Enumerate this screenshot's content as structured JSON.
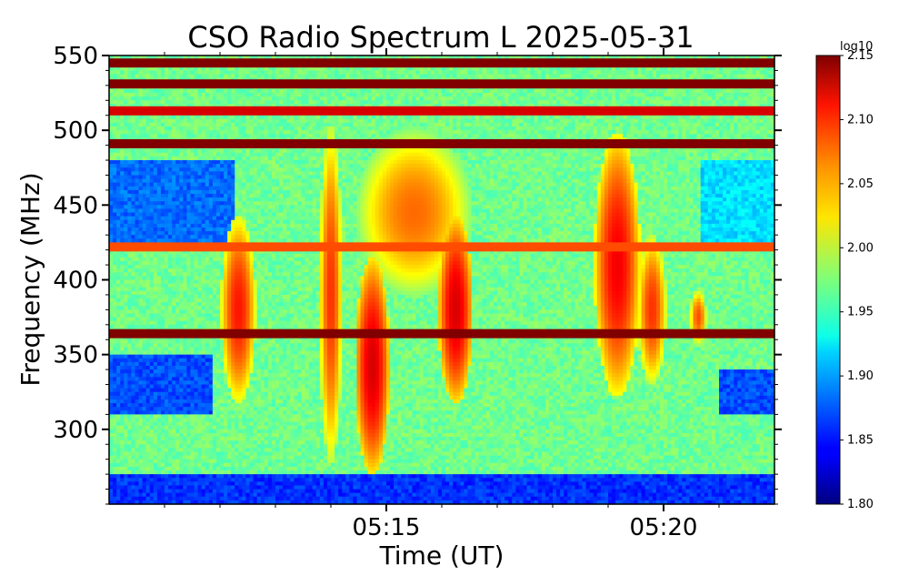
{
  "chart_data": {
    "type": "heatmap",
    "title": "CSO Radio Spectrum L 2025-05-31",
    "xlabel": "Time (UT)",
    "ylabel": "Frequency (MHz)",
    "x_range": [
      "05:10:00",
      "05:22:00"
    ],
    "y_range": [
      250,
      550
    ],
    "x_ticks": [
      {
        "label": "05:15",
        "time": "05:15:00"
      },
      {
        "label": "05:20",
        "time": "05:20:00"
      }
    ],
    "y_ticks": [
      300,
      350,
      400,
      450,
      500,
      550
    ],
    "colorbar": {
      "label": "log10",
      "range": [
        1.8,
        2.15
      ],
      "ticks": [
        "1.80",
        "1.85",
        "1.90",
        "1.95",
        "2.00",
        "2.05",
        "2.10",
        "2.15"
      ],
      "colormap": "jet"
    },
    "background_level": 1.97,
    "persistent_bands_mhz": [
      {
        "center": 545,
        "level": 2.15
      },
      {
        "center": 531,
        "level": 2.15
      },
      {
        "center": 491,
        "level": 2.15
      },
      {
        "center": 364,
        "level": 2.15
      },
      {
        "center": 513,
        "level": 2.12
      },
      {
        "center": 422,
        "level": 2.08
      }
    ],
    "bursts": [
      {
        "start": "05:12:05",
        "end": "05:12:35",
        "freq_low": 330,
        "freq_high": 430,
        "peak": 2.1
      },
      {
        "start": "05:13:50",
        "end": "05:14:10",
        "freq_low": 300,
        "freq_high": 480,
        "peak": 2.09
      },
      {
        "start": "05:14:30",
        "end": "05:15:00",
        "freq_low": 285,
        "freq_high": 400,
        "peak": 2.12
      },
      {
        "start": "05:14:40",
        "end": "05:16:20",
        "freq_low": 400,
        "freq_high": 490,
        "peak": 2.07
      },
      {
        "start": "05:16:00",
        "end": "05:16:30",
        "freq_low": 330,
        "freq_high": 430,
        "peak": 2.12
      },
      {
        "start": "05:18:50",
        "end": "05:19:30",
        "freq_low": 340,
        "freq_high": 480,
        "peak": 2.11
      },
      {
        "start": "05:19:35",
        "end": "05:20:00",
        "freq_low": 340,
        "freq_high": 420,
        "peak": 2.09
      },
      {
        "start": "05:20:30",
        "end": "05:20:45",
        "freq_low": 360,
        "freq_high": 390,
        "peak": 2.08
      }
    ],
    "quiet_regions": [
      {
        "start": "05:10:00",
        "end": "05:12:15",
        "freq_low": 420,
        "freq_high": 480,
        "level": 1.88
      },
      {
        "start": "05:10:00",
        "end": "05:11:50",
        "freq_low": 310,
        "freq_high": 350,
        "level": 1.87
      },
      {
        "start": "05:21:00",
        "end": "05:22:00",
        "freq_low": 310,
        "freq_high": 340,
        "level": 1.87
      },
      {
        "start": "05:20:40",
        "end": "05:22:00",
        "freq_low": 420,
        "freq_high": 480,
        "level": 1.92
      },
      {
        "start": "05:10:00",
        "end": "05:22:00",
        "freq_low": 250,
        "freq_high": 270,
        "level": 1.86
      }
    ]
  }
}
